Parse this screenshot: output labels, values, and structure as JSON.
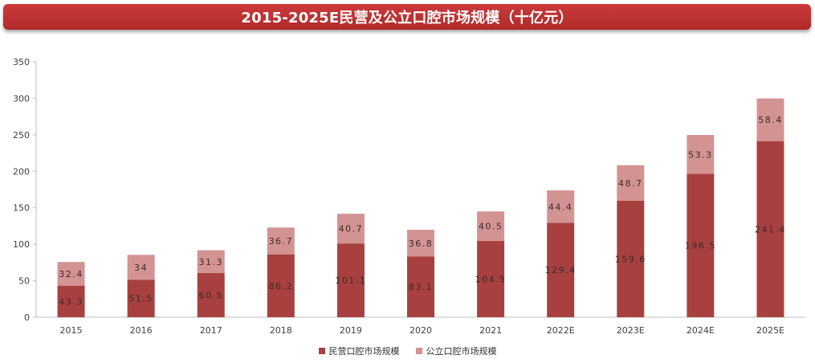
{
  "chart_data": {
    "type": "bar",
    "stacked": true,
    "title": "2015-2025E民营及公立口腔市场规模（十亿元）",
    "categories": [
      "2015",
      "2016",
      "2017",
      "2018",
      "2019",
      "2020",
      "2021",
      "2022E",
      "2023E",
      "2024E",
      "2025E"
    ],
    "series": [
      {
        "name": "民营口腔市场规模",
        "color": "#a94040",
        "values": [
          43.3,
          51.5,
          60.5,
          86.2,
          101.1,
          83.1,
          104.5,
          129.4,
          159.6,
          196.5,
          241.4
        ]
      },
      {
        "name": "公立口腔市场规模",
        "color": "#d49393",
        "values": [
          32.4,
          34,
          31.3,
          36.7,
          40.7,
          36.8,
          40.5,
          44.4,
          48.7,
          53.3,
          58.4
        ]
      }
    ],
    "value_labels": [
      [
        "43.3",
        "51.5",
        "60.5",
        "86.2",
        "101.1",
        "83.1",
        "104.5",
        "129.4",
        "159.6",
        "196.5",
        "241.4"
      ],
      [
        "32.4",
        "34",
        "31.3",
        "36.7",
        "40.7",
        "36.8",
        "40.5",
        "44.4",
        "48.7",
        "53.3",
        "58.4"
      ]
    ],
    "yticks": [
      "0",
      "50",
      "100",
      "150",
      "200",
      "250",
      "300",
      "350"
    ],
    "ylim": [
      0,
      350
    ],
    "xlabel": "",
    "ylabel": "",
    "legend": "bottom-center"
  }
}
